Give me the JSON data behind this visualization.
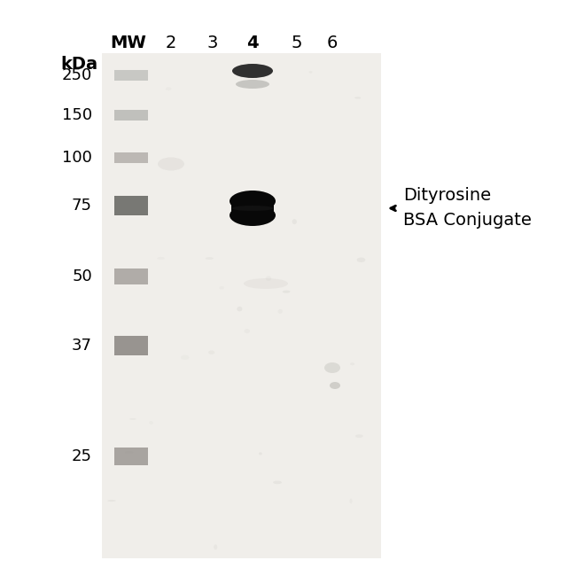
{
  "figure_bg": "#ffffff",
  "gel_bg": "#f0eeec",
  "lane_labels": [
    "MW",
    "2",
    "3",
    "4",
    "5",
    "6"
  ],
  "lane_bold": [
    "MW",
    "4"
  ],
  "kda_labels": [
    "250",
    "150",
    "100",
    "75",
    "50",
    "37",
    "25"
  ],
  "kda_label_text": "kDa",
  "annotation_text_line1": "Dityrosine",
  "annotation_text_line2": "BSA Conjugate",
  "font_size_lane": 14,
  "font_size_kda_label": 12,
  "font_size_kda": 13,
  "font_size_annotation": 14,
  "mw_band_color": "#aaaaaa",
  "mw_band_75_color": "#888888",
  "mw_band_37_color": "#999999",
  "mw_band_25_color": "#aaaaaa",
  "main_band_color": "#080808",
  "top_band_color": "#303030"
}
